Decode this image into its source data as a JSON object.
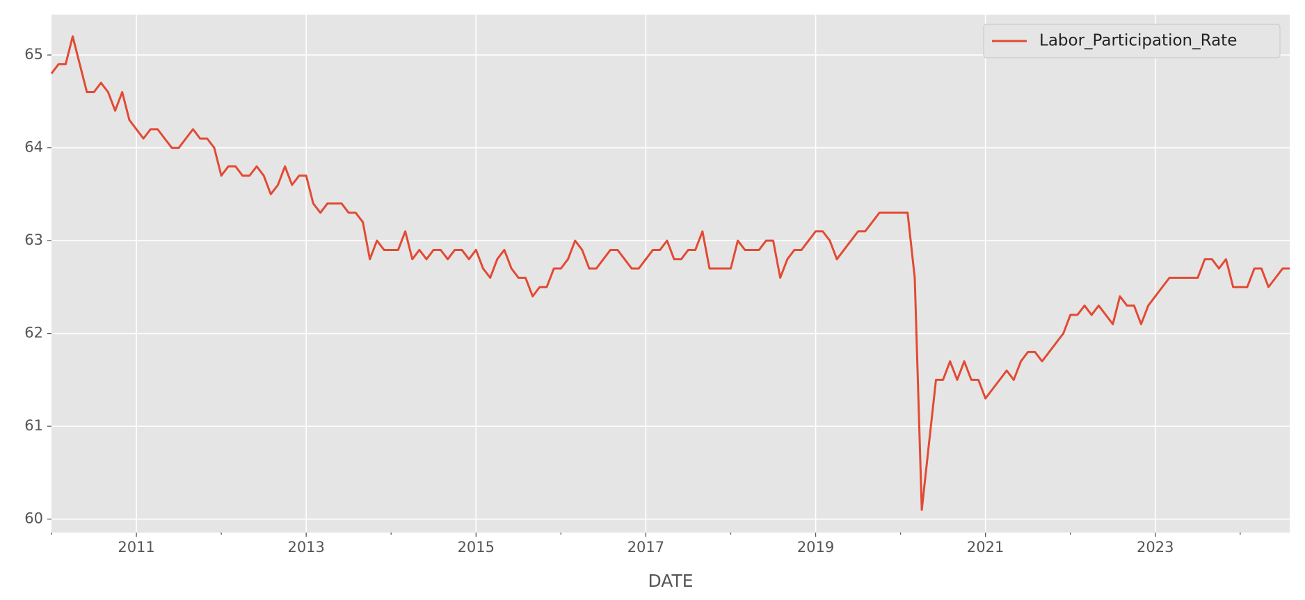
{
  "chart_data": {
    "type": "line",
    "x_label": "DATE",
    "x": [
      2010,
      2010.083,
      2010.167,
      2010.25,
      2010.333,
      2010.417,
      2010.5,
      2010.583,
      2010.667,
      2010.75,
      2010.833,
      2010.917,
      2011,
      2011.083,
      2011.167,
      2011.25,
      2011.333,
      2011.417,
      2011.5,
      2011.583,
      2011.667,
      2011.75,
      2011.833,
      2011.917,
      2012,
      2012.083,
      2012.167,
      2012.25,
      2012.333,
      2012.417,
      2012.5,
      2012.583,
      2012.667,
      2012.75,
      2012.833,
      2012.917,
      2013,
      2013.083,
      2013.167,
      2013.25,
      2013.333,
      2013.417,
      2013.5,
      2013.583,
      2013.667,
      2013.75,
      2013.833,
      2013.917,
      2014,
      2014.083,
      2014.167,
      2014.25,
      2014.333,
      2014.417,
      2014.5,
      2014.583,
      2014.667,
      2014.75,
      2014.833,
      2014.917,
      2015,
      2015.083,
      2015.167,
      2015.25,
      2015.333,
      2015.417,
      2015.5,
      2015.583,
      2015.667,
      2015.75,
      2015.833,
      2015.917,
      2016,
      2016.083,
      2016.167,
      2016.25,
      2016.333,
      2016.417,
      2016.5,
      2016.583,
      2016.667,
      2016.75,
      2016.833,
      2016.917,
      2017,
      2017.083,
      2017.167,
      2017.25,
      2017.333,
      2017.417,
      2017.5,
      2017.583,
      2017.667,
      2017.75,
      2017.833,
      2017.917,
      2018,
      2018.083,
      2018.167,
      2018.25,
      2018.333,
      2018.417,
      2018.5,
      2018.583,
      2018.667,
      2018.75,
      2018.833,
      2018.917,
      2019,
      2019.083,
      2019.167,
      2019.25,
      2019.333,
      2019.417,
      2019.5,
      2019.583,
      2019.667,
      2019.75,
      2019.833,
      2019.917,
      2020,
      2020.083,
      2020.167,
      2020.25,
      2020.333,
      2020.417,
      2020.5,
      2020.583,
      2020.667,
      2020.75,
      2020.833,
      2020.917,
      2021,
      2021.083,
      2021.167,
      2021.25,
      2021.333,
      2021.417,
      2021.5,
      2021.583,
      2021.667,
      2021.75,
      2021.833,
      2021.917,
      2022,
      2022.083,
      2022.167,
      2022.25,
      2022.333,
      2022.417,
      2022.5,
      2022.583,
      2022.667,
      2022.75,
      2022.833,
      2022.917,
      2023,
      2023.083,
      2023.167,
      2023.25,
      2023.333,
      2023.417,
      2023.5,
      2023.583,
      2023.667,
      2023.75,
      2023.833,
      2023.917,
      2024,
      2024.083,
      2024.167,
      2024.25,
      2024.333,
      2024.417,
      2024.5,
      2024.583
    ],
    "series": [
      {
        "name": "Labor_Participation_Rate",
        "color": "#e24a33",
        "values": [
          64.8,
          64.9,
          64.9,
          65.2,
          64.9,
          64.6,
          64.6,
          64.7,
          64.6,
          64.4,
          64.6,
          64.3,
          64.2,
          64.1,
          64.2,
          64.2,
          64.1,
          64.0,
          64.0,
          64.1,
          64.2,
          64.1,
          64.1,
          64.0,
          63.7,
          63.8,
          63.8,
          63.7,
          63.7,
          63.8,
          63.7,
          63.5,
          63.6,
          63.8,
          63.6,
          63.7,
          63.7,
          63.4,
          63.3,
          63.4,
          63.4,
          63.4,
          63.3,
          63.3,
          63.2,
          62.8,
          63.0,
          62.9,
          62.9,
          62.9,
          63.1,
          62.8,
          62.9,
          62.8,
          62.9,
          62.9,
          62.8,
          62.9,
          62.9,
          62.8,
          62.9,
          62.7,
          62.6,
          62.8,
          62.9,
          62.7,
          62.6,
          62.6,
          62.4,
          62.5,
          62.5,
          62.7,
          62.7,
          62.8,
          63.0,
          62.9,
          62.7,
          62.7,
          62.8,
          62.9,
          62.9,
          62.8,
          62.7,
          62.7,
          62.8,
          62.9,
          62.9,
          63.0,
          62.8,
          62.8,
          62.9,
          62.9,
          63.1,
          62.7,
          62.7,
          62.7,
          62.7,
          63.0,
          62.9,
          62.9,
          62.9,
          63.0,
          63.0,
          62.6,
          62.8,
          62.9,
          62.9,
          63.0,
          63.1,
          63.1,
          63.0,
          62.8,
          62.9,
          63.0,
          63.1,
          63.1,
          63.2,
          63.3,
          63.3,
          63.3,
          63.3,
          63.3,
          62.6,
          60.1,
          60.8,
          61.5,
          61.5,
          61.7,
          61.5,
          61.7,
          61.5,
          61.5,
          61.3,
          61.4,
          61.5,
          61.6,
          61.5,
          61.7,
          61.8,
          61.8,
          61.7,
          61.8,
          61.9,
          62.0,
          62.2,
          62.2,
          62.3,
          62.2,
          62.3,
          62.2,
          62.1,
          62.4,
          62.3,
          62.3,
          62.1,
          62.3,
          62.4,
          62.5,
          62.6,
          62.6,
          62.6,
          62.6,
          62.6,
          62.8,
          62.8,
          62.7,
          62.8,
          62.5,
          62.5,
          62.5,
          62.7,
          62.7,
          62.5,
          62.6,
          62.7,
          62.7
        ]
      }
    ],
    "xlim": [
      2010,
      2024.583
    ],
    "xticks": [
      2011,
      2013,
      2015,
      2017,
      2019,
      2021,
      2023
    ],
    "xminorticks": [
      2010,
      2012,
      2014,
      2016,
      2018,
      2020,
      2022,
      2024
    ],
    "ylim": [
      59.855,
      65.435
    ],
    "yticks": [
      60,
      61,
      62,
      63,
      64,
      65
    ],
    "grid": true,
    "legend": "upper right"
  }
}
